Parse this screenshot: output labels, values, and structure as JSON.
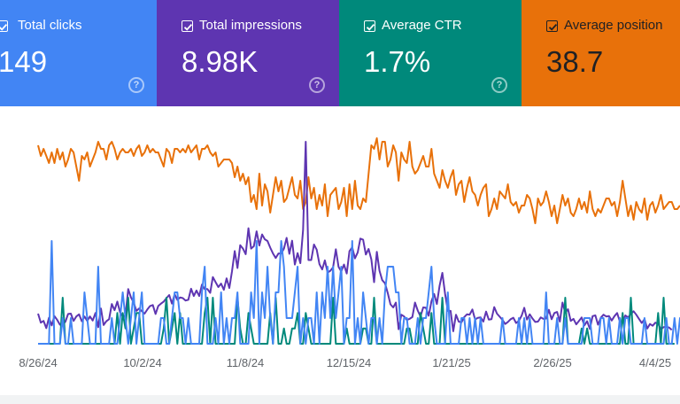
{
  "metrics": [
    {
      "key": "clicks",
      "label": "Total clicks",
      "value": "149",
      "checked": true,
      "color": "#4285f4",
      "text_color": "#ffffff",
      "icon": "help-circle-icon"
    },
    {
      "key": "impressions",
      "label": "Total impressions",
      "value": "8.98K",
      "checked": true,
      "color": "#5e35b1",
      "text_color": "#ffffff",
      "icon": "help-circle-icon"
    },
    {
      "key": "ctr",
      "label": "Average CTR",
      "value": "1.7%",
      "checked": true,
      "color": "#00897b",
      "text_color": "#ffffff",
      "icon": "help-circle-icon"
    },
    {
      "key": "position",
      "label": "Average position",
      "value": "38.7",
      "checked": true,
      "color": "#e8710a",
      "text_color": "#202124",
      "icon": "help-circle-icon"
    }
  ],
  "chart_data": {
    "type": "line",
    "grid": false,
    "legend": "none",
    "x_tick_labels": [
      "8/26/24",
      "10/2/24",
      "11/8/24",
      "12/15/24",
      "1/21/25",
      "2/26/25",
      "4/4/25"
    ],
    "series": [
      {
        "key": "position",
        "color": "#e8710a",
        "values": [
          34,
          31,
          33,
          31,
          29,
          32,
          29,
          33,
          30,
          32,
          28,
          30,
          33,
          32,
          28,
          24,
          31,
          30,
          32,
          28,
          30,
          32,
          35,
          33,
          33,
          30,
          34,
          35,
          33,
          30,
          32,
          33,
          32,
          32,
          33,
          31,
          33,
          34,
          31,
          32,
          34,
          32,
          33,
          32,
          32,
          30,
          28,
          33,
          32,
          29,
          33,
          33,
          32,
          33,
          32,
          34,
          32,
          33,
          34,
          30,
          33,
          33,
          34,
          32,
          31,
          32,
          28,
          29,
          30,
          30,
          30,
          29,
          25,
          28,
          24,
          26,
          23,
          25,
          18,
          20,
          16,
          26,
          17,
          23,
          21,
          15,
          20,
          25,
          21,
          24,
          18,
          19,
          22,
          25,
          20,
          19,
          24,
          16,
          18,
          25,
          19,
          22,
          16,
          20,
          17,
          23,
          14,
          20,
          21,
          22,
          16,
          18,
          22,
          14,
          23,
          16,
          24,
          17,
          16,
          19,
          18,
          26,
          34,
          33,
          36,
          30,
          35,
          35,
          28,
          30,
          34,
          32,
          24,
          32,
          30,
          29,
          35,
          28,
          26,
          27,
          29,
          31,
          28,
          28,
          33,
          26,
          24,
          22,
          27,
          24,
          22,
          25,
          27,
          20,
          23,
          24,
          18,
          22,
          25,
          21,
          20,
          17,
          20,
          22,
          23,
          14,
          16,
          19,
          16,
          21,
          20,
          19,
          23,
          18,
          17,
          18,
          15,
          17,
          17,
          20,
          19,
          16,
          12,
          19,
          17,
          18,
          21,
          18,
          14,
          17,
          12,
          16,
          20,
          17,
          19,
          15,
          14,
          16,
          19,
          16,
          18,
          15,
          21,
          16,
          14,
          16,
          15,
          17,
          19,
          19,
          17,
          18,
          14,
          18,
          24,
          19,
          14,
          17,
          13,
          18,
          16,
          15,
          19,
          13,
          17,
          18,
          15,
          17,
          20,
          16,
          17,
          18,
          18,
          16,
          16,
          17
        ]
      },
      {
        "key": "impressions",
        "color": "#5e35b1",
        "values": [
          8.7,
          6.1,
          6.6,
          4.5,
          7.5,
          5.3,
          8,
          6.9,
          5.5,
          5.4,
          6.4,
          8.6,
          8.7,
          6.6,
          7.9,
          8.5,
          6.5,
          7.9,
          6.6,
          7.9,
          6.7,
          8.9,
          4.8,
          10.2,
          5.4,
          6.5,
          7.1,
          11.5,
          9.7,
          12.2,
          9.1,
          7.9,
          8.2,
          15.8,
          13.4,
          11.9,
          9.5,
          10.2,
          9.4,
          8.7,
          9.9,
          10.9,
          11.2,
          8.6,
          10.9,
          11.6,
          12.2,
          13.2,
          14.1,
          11.6,
          14.3,
          12.7,
          13.4,
          13.2,
          12.5,
          12.7,
          15.9,
          13.8,
          15.4,
          13.8,
          17.1,
          15.8,
          15.8,
          14.7,
          19.3,
          17.8,
          16.4,
          17.4,
          15.6,
          18.9,
          16.1,
          20.9,
          26.8,
          21.9,
          28.5,
          27.5,
          25.9,
          33.4,
          27.5,
          28.2,
          32.5,
          28.4,
          31.6,
          30.2,
          29.7,
          27.8,
          26.1,
          24.8,
          26.1,
          26.1,
          27.5,
          30.6,
          26,
          29.8,
          22.9,
          26.2,
          23.3,
          32.9,
          58.4,
          24.2,
          24.2,
          28.7,
          27.2,
          23,
          21.5,
          24.1,
          20.6,
          21.1,
          22.1,
          27.3,
          22.2,
          20.9,
          22.9,
          20.3,
          26.8,
          27.9,
          24.7,
          26.4,
          30.4,
          30.1,
          25.8,
          27.4,
          24.4,
          17.8,
          26.6,
          21.1,
          18.4,
          17.5,
          14.7,
          11.4,
          10.5,
          11.9,
          4.2,
          8.4,
          7.9,
          6.9,
          7.2,
          7.7,
          11.9,
          9.6,
          7.9,
          10.5,
          10.4,
          8.1,
          12.3,
          14.4,
          11.5,
          16.8,
          20.5,
          14.4,
          9.5,
          9.5,
          3.6,
          8.4,
          6.4,
          6.2,
          7.7,
          8.5,
          8.4,
          9.9,
          7,
          7.5,
          7.6,
          6.4,
          9.3,
          7,
          7.1,
          10.6,
          8.7,
          7.8,
          6.9,
          5.7,
          6.3,
          7.1,
          7.5,
          6,
          6.6,
          8.1,
          10.4,
          7,
          8.5,
          7.3,
          6.3,
          6.4,
          7.6,
          7.2,
          7.3,
          9.8,
          7.1,
          8.9,
          9.2,
          6.4,
          11.9,
          9,
          10,
          6.6,
          7.2,
          5.6,
          6.6,
          7.6,
          5.3,
          6.5,
          4.3,
          8,
          8.2,
          5.5,
          7.5,
          8.4,
          7.9,
          8,
          6.7,
          8,
          8.9,
          6.4,
          6.2,
          8.2,
          7.6,
          8.6,
          9.4,
          8.4,
          7.2,
          6,
          7.1,
          4.4,
          5.7,
          5.2,
          6.1,
          5.8,
          4.2,
          4.8,
          4.9,
          4.7,
          4
        ]
      },
      {
        "key": "clicks",
        "color": "#4285f4",
        "values": [
          0,
          0,
          0,
          0,
          0,
          4,
          0,
          0,
          0,
          1,
          0,
          0,
          1,
          0,
          0,
          0,
          0,
          2,
          1,
          0,
          0,
          0,
          3,
          0,
          0,
          0,
          0,
          1,
          0,
          0,
          1,
          2,
          1,
          0,
          1,
          2,
          0,
          1,
          2,
          0,
          0,
          0,
          0,
          0,
          0,
          1,
          1,
          0,
          0,
          1,
          2,
          2,
          1,
          1,
          0,
          1,
          0,
          0,
          0,
          0,
          2,
          3,
          0,
          0,
          0,
          1,
          0,
          2,
          0,
          1,
          0,
          1,
          1,
          2,
          0,
          0,
          0,
          0,
          2,
          1,
          4,
          0,
          2,
          1,
          3,
          1,
          0,
          2,
          2,
          4,
          3,
          1,
          1,
          1,
          2,
          3,
          0,
          1,
          0,
          1,
          1,
          0,
          2,
          0,
          2,
          1,
          3,
          1,
          3,
          1,
          2,
          3,
          0,
          1,
          1,
          4,
          0,
          1,
          0,
          2,
          1,
          0,
          1,
          1,
          0,
          1,
          0,
          2,
          3,
          3,
          3,
          2,
          2,
          0,
          1,
          1,
          0,
          0,
          0,
          1,
          0,
          1,
          1,
          2,
          3,
          1,
          0,
          0,
          0,
          0,
          2,
          0,
          0,
          0,
          0,
          1,
          1,
          0,
          1,
          0,
          1,
          0,
          1,
          0,
          0,
          0,
          0,
          0,
          0,
          0,
          1,
          0,
          0,
          0,
          0,
          0,
          1,
          0,
          1,
          0,
          1,
          0,
          0,
          0,
          0,
          0,
          2,
          0,
          0,
          0,
          1,
          0,
          0,
          1,
          0,
          0,
          0,
          0,
          0,
          0,
          1,
          1,
          1,
          0,
          0,
          0,
          1,
          1,
          0,
          1,
          0,
          0,
          0,
          1,
          0,
          1,
          1,
          0,
          0,
          0,
          0,
          0,
          1,
          0,
          0,
          0,
          0,
          0,
          0,
          0,
          1,
          0,
          0,
          1,
          0,
          1,
          0,
          0,
          0,
          0
        ]
      },
      {
        "key": "ctr",
        "color": "#00897b",
        "values": [
          0,
          0,
          0,
          0,
          0,
          0,
          0,
          0,
          0,
          3,
          0,
          0,
          0,
          0,
          0,
          0,
          0,
          0,
          0,
          0,
          0,
          0,
          0,
          0,
          0,
          0,
          0,
          0,
          0,
          2,
          0,
          2,
          1,
          3,
          0,
          1,
          2,
          2,
          0,
          0,
          0,
          0,
          0,
          0,
          0,
          0,
          1,
          3,
          0,
          1,
          2,
          0,
          2,
          0,
          0,
          0,
          0,
          0,
          0,
          0,
          0,
          2,
          3,
          0,
          3,
          0,
          0,
          0,
          0,
          0,
          0,
          0,
          0,
          3,
          1,
          0,
          0,
          2,
          1,
          0,
          0,
          0,
          0,
          0,
          0,
          2,
          0,
          3,
          0,
          0,
          1,
          0,
          0,
          1,
          1,
          2,
          0,
          0,
          2,
          1,
          0,
          0,
          0,
          0,
          0,
          0,
          0,
          0,
          3,
          0,
          0,
          0,
          0,
          1,
          0,
          0,
          0,
          0,
          0,
          1,
          1,
          0,
          0,
          3,
          0,
          0,
          0,
          0,
          0,
          0,
          0,
          0,
          0,
          0,
          0,
          1,
          1,
          0,
          0,
          0,
          2,
          1,
          0,
          0,
          2,
          0,
          0,
          0,
          3,
          0,
          0,
          0,
          0,
          0,
          0,
          0,
          0,
          0,
          0,
          0,
          0,
          0,
          0,
          0,
          0,
          0,
          0,
          0,
          0,
          0,
          0,
          0,
          0,
          0,
          0,
          0,
          0,
          0,
          0,
          0,
          0,
          0,
          0,
          0,
          0,
          0,
          0,
          0,
          0,
          0,
          0,
          0,
          0,
          3,
          0,
          0,
          0,
          0,
          0,
          1,
          0,
          1,
          0,
          0,
          0,
          0,
          0,
          0,
          0,
          0,
          0,
          0,
          0,
          0,
          2,
          0,
          0,
          3,
          0,
          0,
          0,
          0,
          0,
          0,
          0,
          0,
          0,
          2,
          0,
          3,
          0,
          0,
          0,
          0
        ]
      }
    ]
  }
}
